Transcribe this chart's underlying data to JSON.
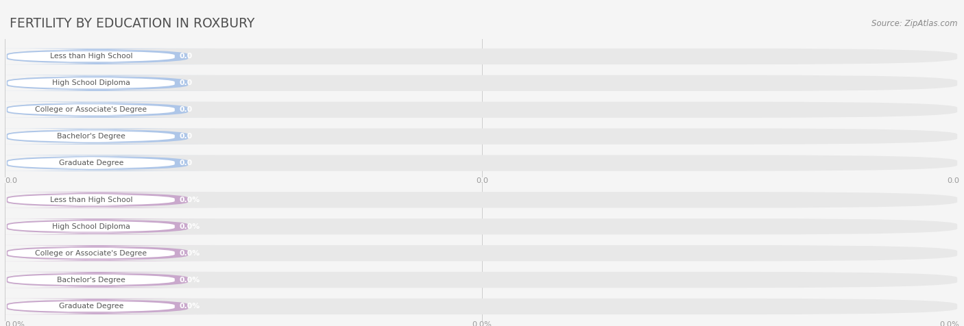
{
  "title": "FERTILITY BY EDUCATION IN ROXBURY",
  "source": "Source: ZipAtlas.com",
  "categories": [
    "Less than High School",
    "High School Diploma",
    "College or Associate's Degree",
    "Bachelor's Degree",
    "Graduate Degree"
  ],
  "values_top": [
    0.0,
    0.0,
    0.0,
    0.0,
    0.0
  ],
  "values_bottom": [
    0.0,
    0.0,
    0.0,
    0.0,
    0.0
  ],
  "bar_color_top": "#aec6e8",
  "bar_color_bottom": "#c9a8cc",
  "bar_bg_color": "#e8e8e8",
  "background_color": "#f5f5f5",
  "title_color": "#505050",
  "label_color": "#555555",
  "axis_label_color": "#999999",
  "source_color": "#888888",
  "figsize": [
    14.06,
    4.76
  ],
  "dpi": 100
}
